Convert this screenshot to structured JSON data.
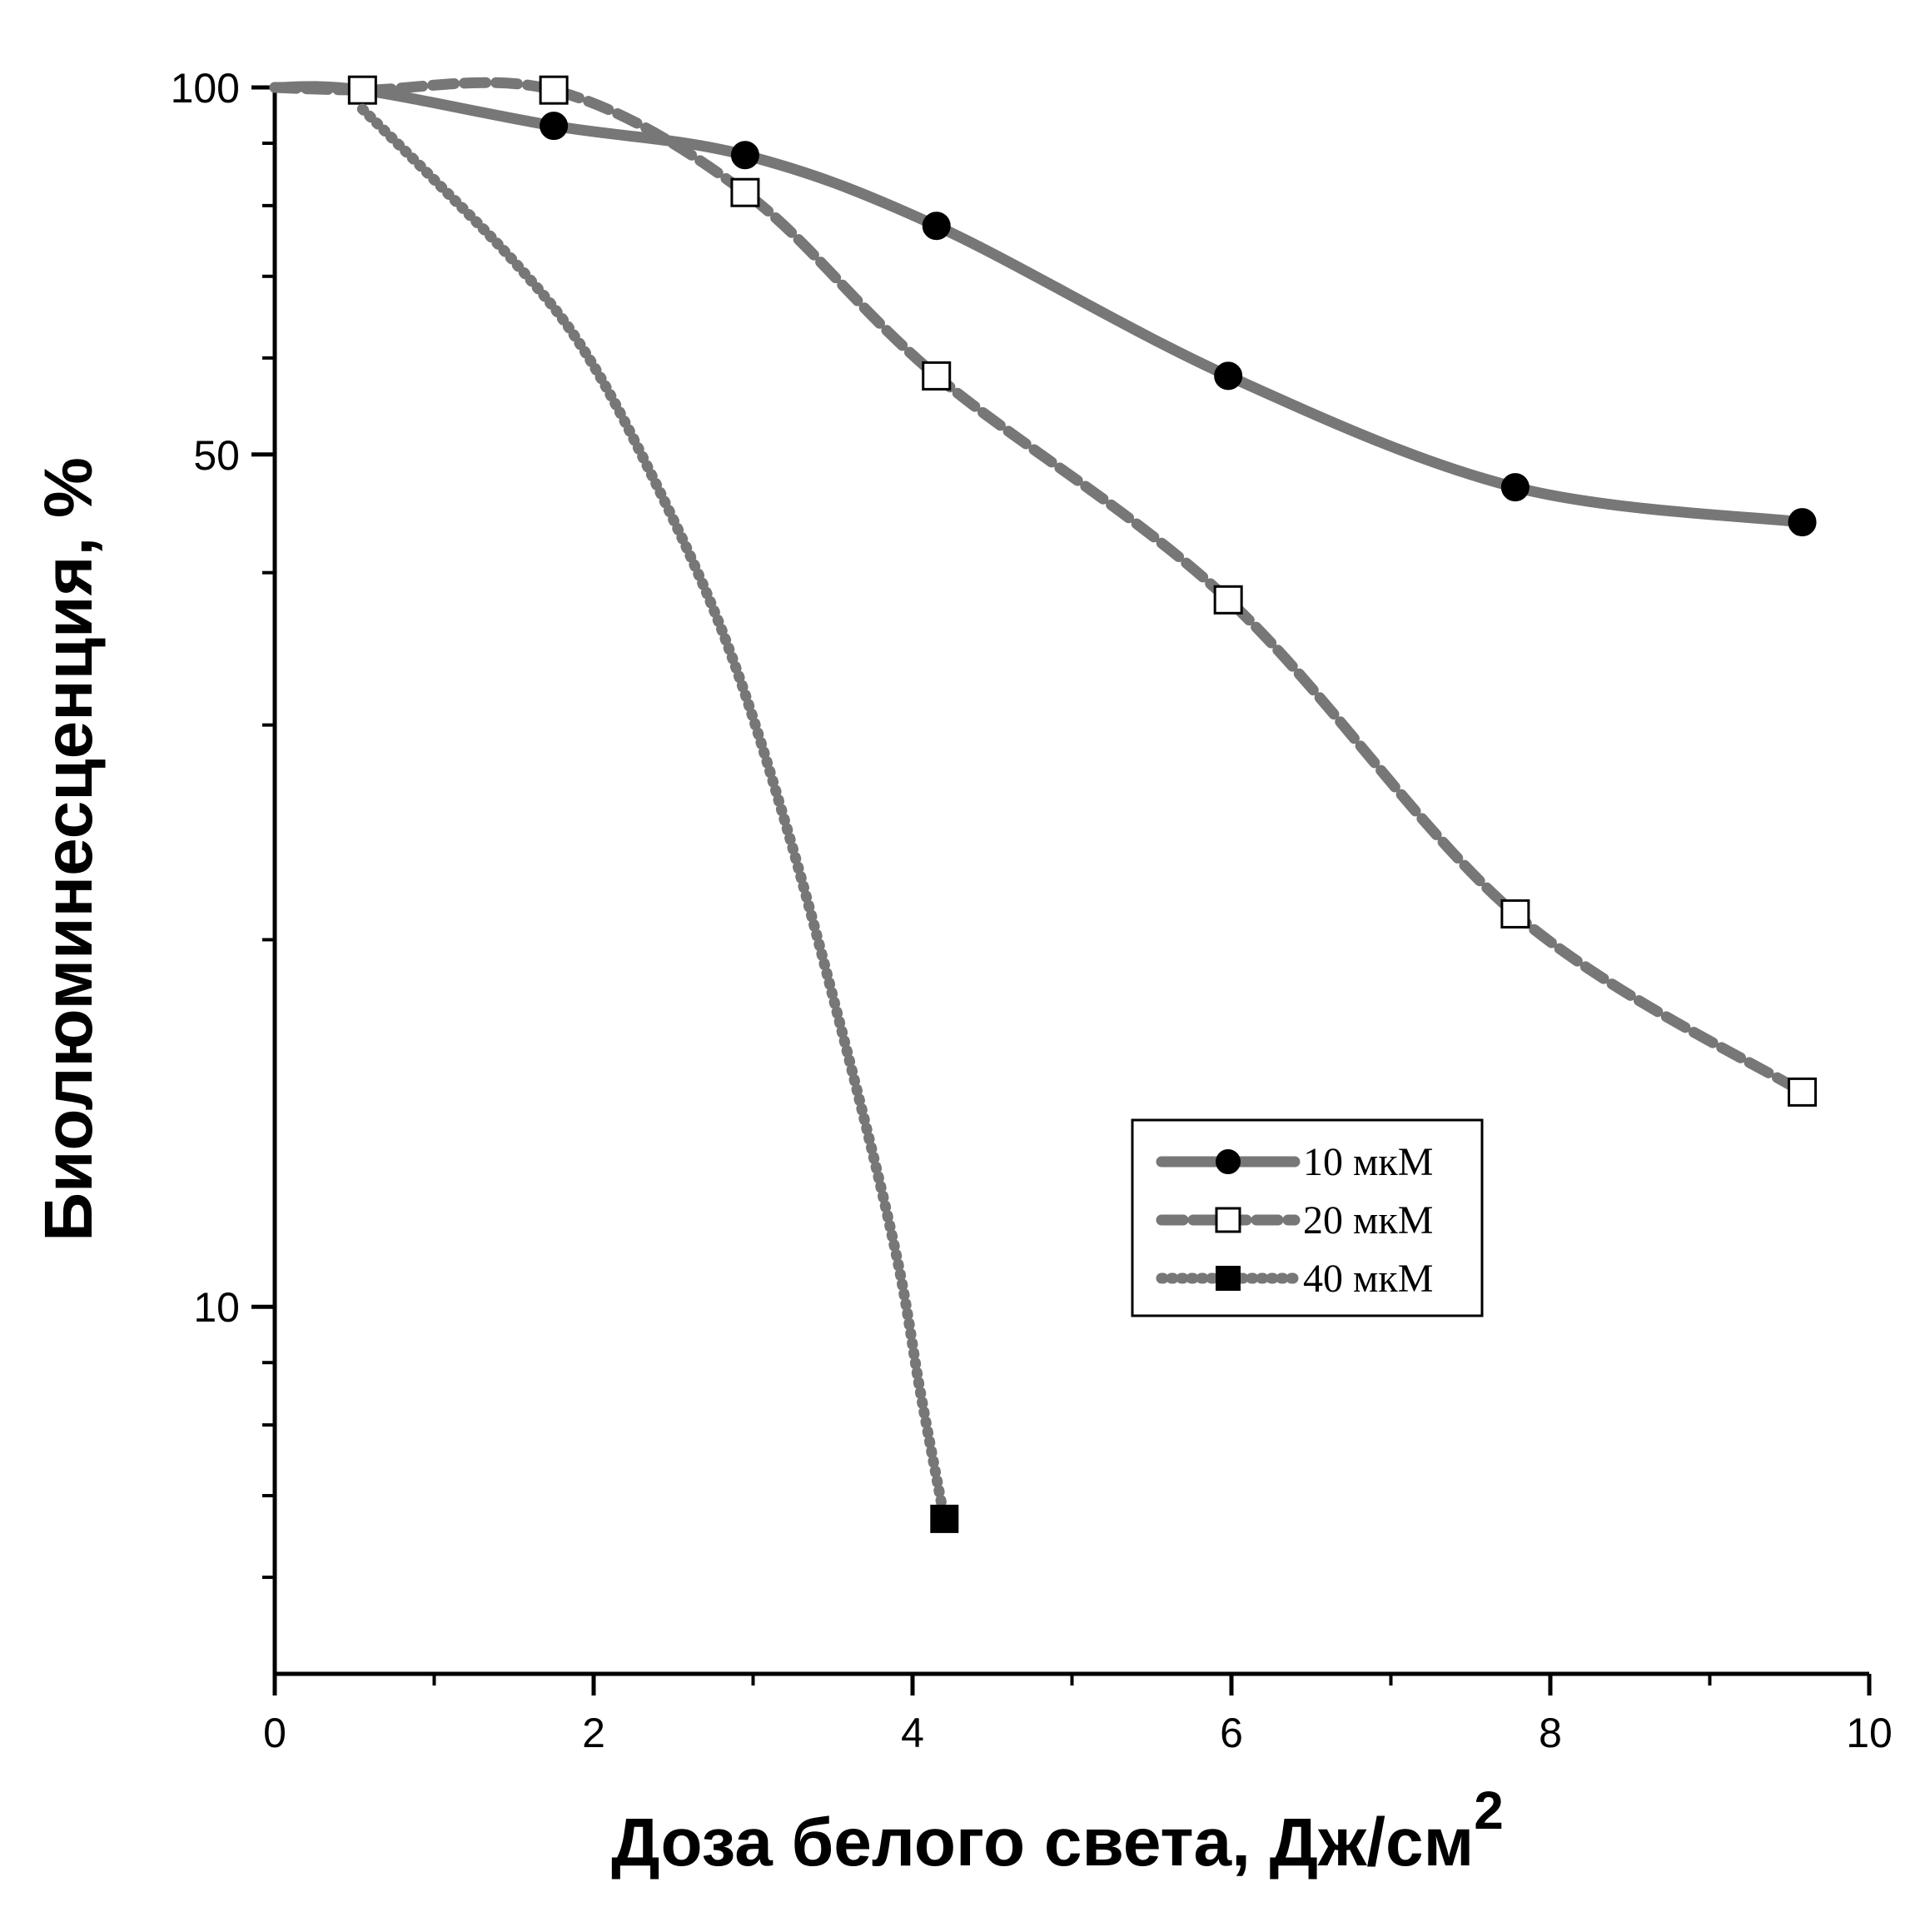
{
  "chart_data": {
    "type": "line",
    "xlabel": "Доза белого света, Дж/см",
    "xlabel_superscript": "2",
    "ylabel": "Биолюминесценция, %",
    "xlim": [
      0,
      10
    ],
    "ylim": [
      5,
      100
    ],
    "y_scale": "log",
    "grid": false,
    "legend_position": "lower-right",
    "x_ticks": [
      0,
      2,
      4,
      6,
      8,
      10
    ],
    "x_tick_labels": [
      "0",
      "2",
      "4",
      "6",
      "8",
      "10"
    ],
    "y_ticks": [
      10,
      50,
      100
    ],
    "y_tick_labels": [
      "10",
      "50",
      "100"
    ],
    "series": [
      {
        "name": "10 мкМ",
        "marker": "filled-circle",
        "line_style": "solid",
        "color": "#777777",
        "x": [
          0,
          0.55,
          1.75,
          2.95,
          4.15,
          5.98,
          7.78,
          9.58
        ],
        "y": [
          100,
          99.5,
          93,
          88,
          77,
          58,
          47,
          44
        ]
      },
      {
        "name": "20 мкМ",
        "marker": "open-square",
        "line_style": "dashed",
        "color": "#777777",
        "x": [
          0,
          0.55,
          1.75,
          2.95,
          4.15,
          5.98,
          7.78,
          9.58
        ],
        "y": [
          100,
          99.5,
          99.5,
          82,
          58,
          38,
          21,
          15
        ]
      },
      {
        "name": "40 мкМ",
        "marker": "filled-square",
        "line_style": "dotted",
        "color": "#777777",
        "x": [
          0.55,
          1.0,
          1.5,
          1.9,
          2.3,
          2.8,
          3.2,
          3.6,
          3.9,
          4.05,
          4.2
        ],
        "y": [
          96,
          84,
          72,
          62,
          50,
          36,
          25,
          16,
          11,
          8.5,
          6.7
        ]
      }
    ]
  }
}
